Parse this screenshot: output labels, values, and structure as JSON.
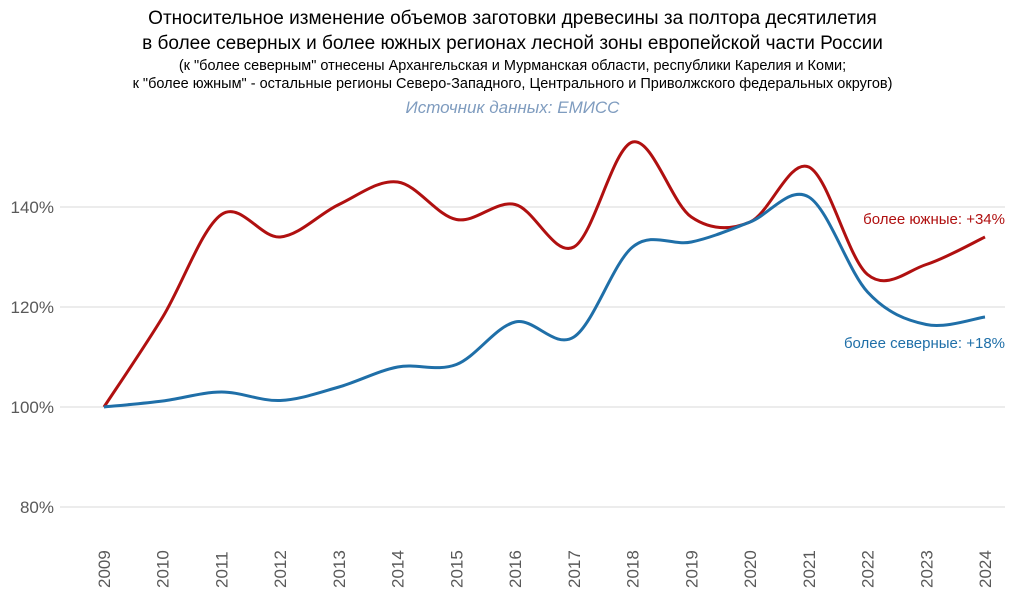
{
  "chart_data": {
    "type": "line",
    "title": [
      "Относительное изменение объемов заготовки древесины за полтора десятилетия",
      "в более северных и более южных регионах лесной зоны европейской части России"
    ],
    "subtitle": [
      "(к \"более северным\" отнесены Архангельская и Мурманская области, республики Карелия и Коми;",
      "к \"более южным\" - остальные регионы Северо-Западного, Центрального и Приволжского федеральных округов)"
    ],
    "source": "Источник данных: ЕМИСС",
    "x": [
      "2009",
      "2010",
      "2011",
      "2012",
      "2013",
      "2014",
      "2015",
      "2016",
      "2017",
      "2018",
      "2019",
      "2020",
      "2021",
      "2022",
      "2023",
      "2024"
    ],
    "yticks": [
      80,
      100,
      120,
      140
    ],
    "ytick_labels": [
      "80%",
      "100%",
      "120%",
      "140%"
    ],
    "ylim": [
      80,
      153
    ],
    "grid": true,
    "series": [
      {
        "name": "более южные",
        "label": "более южные: +34%",
        "color": "#b01010",
        "values": [
          100,
          118,
          138.5,
          134,
          140.5,
          145,
          137.5,
          140.5,
          132,
          153,
          138,
          137,
          148,
          126.5,
          128.5,
          134
        ]
      },
      {
        "name": "более северные",
        "label": "более северные: +18%",
        "color": "#1f6fa8",
        "values": [
          100,
          101.2,
          103,
          101.3,
          104,
          108,
          108.5,
          117,
          114,
          132,
          133,
          137,
          142,
          123,
          116.5,
          118
        ]
      }
    ]
  }
}
